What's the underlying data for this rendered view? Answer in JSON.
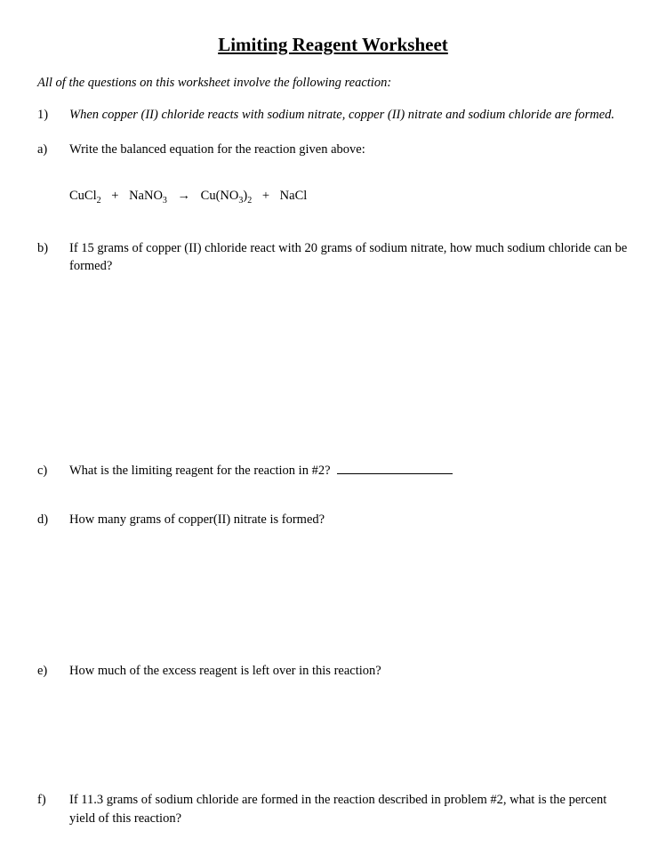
{
  "title": "Limiting Reagent Worksheet",
  "intro": "All of the questions on this worksheet involve the following reaction:",
  "q1": {
    "num": "1)",
    "text": "When copper (II) chloride reacts with sodium nitrate, copper (II) nitrate and sodium chloride are formed."
  },
  "a": {
    "label": "a)",
    "text": "Write the balanced equation for the reaction given above:"
  },
  "equation": {
    "r1": "CuCl",
    "r1sub": "2",
    "plus1": "+",
    "r2": "NaNO",
    "r2sub": "3",
    "arrow": "→",
    "p1a": "Cu(NO",
    "p1sub1": "3",
    "p1b": ")",
    "p1sub2": "2",
    "plus2": "+",
    "p2": "NaCl"
  },
  "b": {
    "label": "b)",
    "text": "If 15 grams of copper (II) chloride react with 20 grams of sodium nitrate, how much sodium chloride can be formed?"
  },
  "c": {
    "label": "c)",
    "text": "What is the limiting reagent for the reaction in #2?"
  },
  "d": {
    "label": "d)",
    "text": "How many grams of copper(II) nitrate is formed?"
  },
  "e": {
    "label": "e)",
    "text": "How much of the excess reagent is left over in this reaction?"
  },
  "f": {
    "label": "f)",
    "text": "If 11.3 grams of sodium chloride are formed in the reaction described in problem #2, what is the percent yield of this reaction?"
  }
}
